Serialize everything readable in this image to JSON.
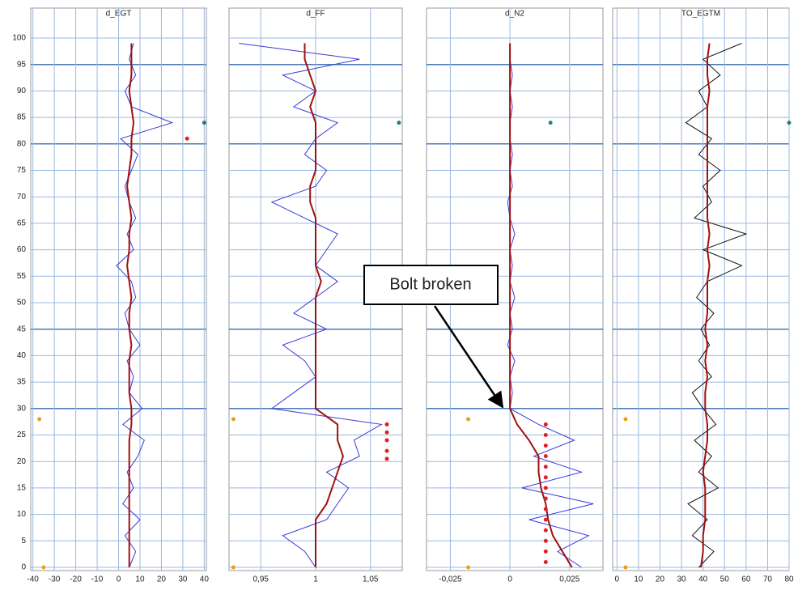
{
  "chart_data": [
    {
      "type": "line",
      "title": "d_EGT",
      "xlim": [
        -41,
        41
      ],
      "xticks": [
        -40,
        -30,
        -20,
        -10,
        0,
        10,
        20,
        30,
        40
      ],
      "ylim": [
        0,
        100
      ],
      "yticks": [
        0,
        5,
        10,
        15,
        20,
        25,
        30,
        35,
        40,
        45,
        50,
        55,
        60,
        65,
        70,
        75,
        80,
        85,
        90,
        95,
        100
      ],
      "ymajor": [
        30,
        45,
        80,
        95
      ],
      "y": [
        0,
        3,
        6,
        9,
        12,
        15,
        18,
        21,
        24,
        27,
        30,
        33,
        36,
        39,
        42,
        45,
        48,
        51,
        54,
        57,
        60,
        63,
        66,
        69,
        72,
        75,
        78,
        81,
        84,
        87,
        90,
        93,
        96,
        99
      ],
      "series": [
        {
          "color": "#3a3ad8",
          "values": [
            5,
            8,
            3,
            10,
            2,
            7,
            4,
            9,
            12,
            2,
            11,
            5,
            7,
            4,
            10,
            5,
            3,
            8,
            6,
            -1,
            7,
            4,
            8,
            5,
            3,
            6,
            9,
            1,
            25,
            6,
            3,
            8,
            5,
            7
          ]
        },
        {
          "color": "#a01010",
          "values": [
            5,
            5,
            5,
            5,
            5,
            5,
            5,
            5,
            5,
            6,
            6,
            5,
            5,
            5,
            6,
            5,
            5,
            6,
            5,
            4,
            5,
            5,
            6,
            5,
            4,
            5,
            6,
            6,
            7,
            6,
            5,
            6,
            6,
            6
          ]
        }
      ],
      "markers": [
        {
          "color": "#e8a020",
          "x": [
            -37,
            -35
          ],
          "y": [
            28,
            0
          ]
        },
        {
          "color": "#e02020",
          "x": [
            32
          ],
          "y": [
            81
          ]
        },
        {
          "color": "#208080",
          "x": [
            40
          ],
          "y": [
            84
          ]
        }
      ]
    },
    {
      "type": "line",
      "title": "d_FF",
      "xlim": [
        0.921,
        1.079
      ],
      "xticks": [
        {
          "value": 0.95,
          "label": "0,95"
        },
        1,
        {
          "value": 1.05,
          "label": "1,05"
        }
      ],
      "y": [
        0,
        3,
        6,
        9,
        12,
        15,
        18,
        21,
        24,
        27,
        30,
        33,
        36,
        39,
        42,
        45,
        48,
        51,
        54,
        57,
        60,
        63,
        66,
        69,
        72,
        75,
        78,
        81,
        84,
        87,
        90,
        93,
        96,
        99
      ],
      "series": [
        {
          "color": "#3a3ad8",
          "values": [
            1.0,
            0.99,
            0.97,
            1.01,
            1.02,
            1.03,
            1.01,
            1.04,
            1.035,
            1.06,
            0.96,
            0.98,
            1.0,
            0.99,
            0.97,
            1.01,
            0.98,
            1.0,
            1.02,
            1.0,
            1.01,
            1.02,
            0.99,
            0.96,
            1.0,
            1.01,
            0.99,
            1.0,
            1.02,
            0.98,
            1.0,
            0.97,
            1.04,
            0.93
          ]
        },
        {
          "color": "#a01010",
          "values": [
            1.0,
            1.0,
            1.0,
            1.0,
            1.01,
            1.015,
            1.02,
            1.025,
            1.02,
            1.02,
            1.0,
            1.0,
            1.0,
            1.0,
            1.0,
            1.0,
            1.0,
            1.0,
            1.005,
            1.0,
            1.0,
            1.0,
            1.0,
            0.995,
            0.995,
            1.0,
            1.0,
            1.0,
            1.0,
            0.995,
            1.0,
            0.995,
            0.99,
            0.99
          ]
        }
      ],
      "markers": [
        {
          "color": "#e8a020",
          "x": [
            0.925,
            0.925
          ],
          "y": [
            28,
            0
          ]
        },
        {
          "color": "#e02020",
          "x": [
            1.065,
            1.065,
            1.065,
            1.065,
            1.065
          ],
          "y": [
            27,
            25.5,
            24,
            22,
            20.5
          ]
        },
        {
          "color": "#208080",
          "x": [
            1.076
          ],
          "y": [
            84
          ]
        }
      ]
    },
    {
      "type": "line",
      "title": "d_N2",
      "xlim": [
        -0.035,
        0.039
      ],
      "xticks": [
        {
          "value": -0.025,
          "label": "-0,025"
        },
        0,
        {
          "value": 0.025,
          "label": "0,025"
        }
      ],
      "y": [
        0,
        3,
        6,
        9,
        12,
        15,
        18,
        21,
        24,
        27,
        30,
        33,
        36,
        39,
        42,
        45,
        48,
        51,
        54,
        57,
        60,
        63,
        66,
        69,
        72,
        75,
        78,
        81,
        84,
        87,
        90,
        93,
        96,
        99
      ],
      "series": [
        {
          "color": "#3a3ad8",
          "values": [
            0.03,
            0.02,
            0.033,
            0.008,
            0.035,
            0.005,
            0.03,
            0.01,
            0.027,
            0.012,
            0.0,
            0.001,
            0.0,
            0.002,
            -0.001,
            0.001,
            0.0,
            0.002,
            0.0,
            0.001,
            0.0,
            0.002,
            0.0,
            -0.001,
            0.001,
            0.0,
            0.001,
            0.0,
            0.0,
            0.001,
            0.0,
            0.001,
            0.0,
            0.0
          ]
        },
        {
          "color": "#a01010",
          "values": [
            0.026,
            0.022,
            0.018,
            0.016,
            0.015,
            0.013,
            0.012,
            0.012,
            0.008,
            0.003,
            0.0,
            0.0,
            0.0,
            0.0,
            0.0,
            0.0,
            0.0,
            0.0,
            0.0,
            0.0,
            0.0,
            0.0,
            0.0,
            0.0,
            0.0,
            0.0,
            0.0,
            0.0,
            0.0,
            0.0,
            0.0,
            0.0,
            0.0,
            0.0
          ]
        }
      ],
      "markers": [
        {
          "color": "#e8a020",
          "x": [
            -0.0175,
            -0.0175
          ],
          "y": [
            28,
            0
          ]
        },
        {
          "color": "#e02020",
          "x": [
            0.015,
            0.015,
            0.015,
            0.015,
            0.015,
            0.015,
            0.015,
            0.015,
            0.015,
            0.015,
            0.015,
            0.015,
            0.015,
            0.015
          ],
          "y": [
            1,
            3,
            5,
            7,
            9,
            11,
            13,
            15,
            17,
            19,
            21,
            23,
            25,
            27
          ]
        },
        {
          "color": "#208080",
          "x": [
            0.017
          ],
          "y": [
            84
          ]
        }
      ]
    },
    {
      "type": "line",
      "title": "TO_EGTM",
      "xlim": [
        -2,
        80
      ],
      "xticks": [
        0,
        10,
        20,
        30,
        40,
        50,
        60,
        70,
        80
      ],
      "y": [
        0,
        3,
        6,
        9,
        12,
        15,
        18,
        21,
        24,
        27,
        30,
        33,
        36,
        39,
        42,
        45,
        48,
        51,
        54,
        57,
        60,
        63,
        66,
        69,
        72,
        75,
        78,
        81,
        84,
        87,
        90,
        93,
        96,
        99
      ],
      "series": [
        {
          "color": "#111111",
          "values": [
            38,
            45,
            35,
            42,
            33,
            47,
            38,
            44,
            36,
            46,
            40,
            35,
            44,
            38,
            43,
            39,
            45,
            37,
            42,
            58,
            40,
            60,
            36,
            44,
            40,
            48,
            38,
            44,
            32,
            42,
            38,
            48,
            40,
            58
          ]
        },
        {
          "color": "#a01010",
          "values": [
            39,
            40,
            40,
            41,
            41,
            41,
            40,
            41,
            42,
            42,
            41,
            41,
            42,
            41,
            42,
            41,
            42,
            42,
            42,
            43,
            42,
            43,
            42,
            42,
            42,
            42,
            42,
            42,
            42,
            42,
            43,
            42,
            42,
            43
          ]
        }
      ],
      "markers": [
        {
          "color": "#e8a020",
          "x": [
            4,
            4
          ],
          "y": [
            28,
            0
          ]
        },
        {
          "color": "#208080",
          "x": [
            80
          ],
          "y": [
            84
          ]
        }
      ]
    }
  ],
  "annotation": "Bolt broken"
}
